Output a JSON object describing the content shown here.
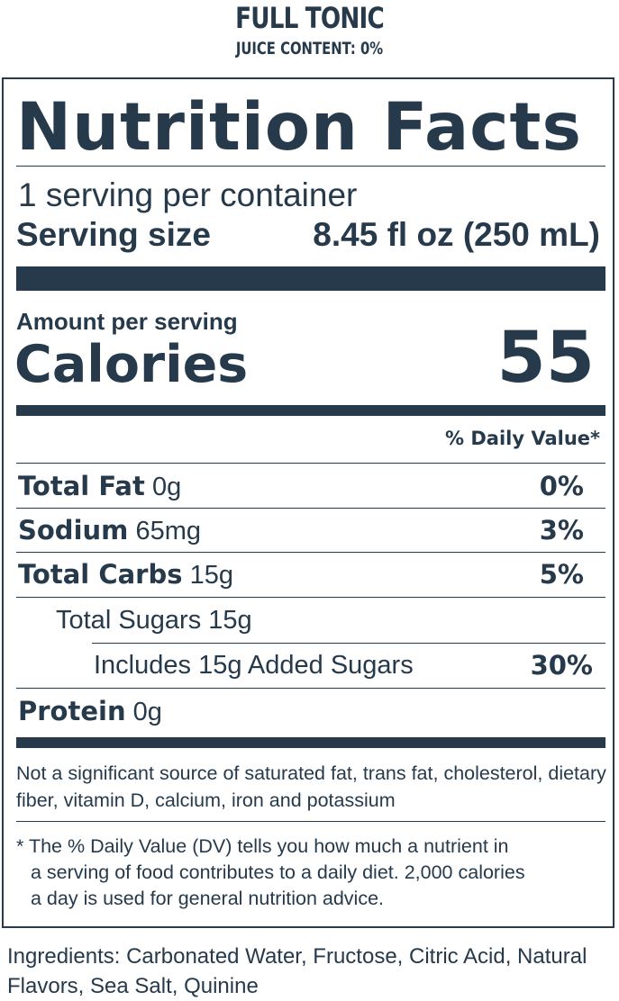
{
  "header": {
    "product_name": "FULL TONIC",
    "juice_content": "JUICE CONTENT: 0%"
  },
  "label": {
    "title": "Nutrition Facts",
    "servings_per_container": "1 serving per container",
    "serving_size_label": "Serving size",
    "serving_size_value": "8.45 fl oz (250 mL)",
    "amount_per_serving": "Amount per serving",
    "calories_label": "Calories",
    "calories_value": "55",
    "daily_value_header": "% Daily Value*",
    "nutrients": [
      {
        "name": "Total Fat",
        "amount": "0g",
        "dv": "0%"
      },
      {
        "name": "Sodium",
        "amount": "65mg",
        "dv": "3%"
      },
      {
        "name": "Total Carbs",
        "amount": "15g",
        "dv": "5%"
      },
      {
        "name": "Total Sugars 15g",
        "amount": "",
        "dv": ""
      },
      {
        "name": "Includes 15g Added Sugars",
        "amount": "",
        "dv": "30%"
      },
      {
        "name": "Protein",
        "amount": "0g",
        "dv": ""
      }
    ],
    "not_significant_note": "Not a significant source of saturated fat, trans fat, cholesterol, dietary fiber, vitamin D, calcium, iron and potassium",
    "footnote_lines": [
      "* The % Daily Value (DV) tells you how much a nutrient in",
      "a serving of food contributes to a daily diet. 2,000 calories",
      "a day is used for general nutrition advice."
    ]
  },
  "ingredients": "Ingredients: Carbonated Water, Fructose, Citric Acid, Natural Flavors, Sea Salt, Quinine"
}
